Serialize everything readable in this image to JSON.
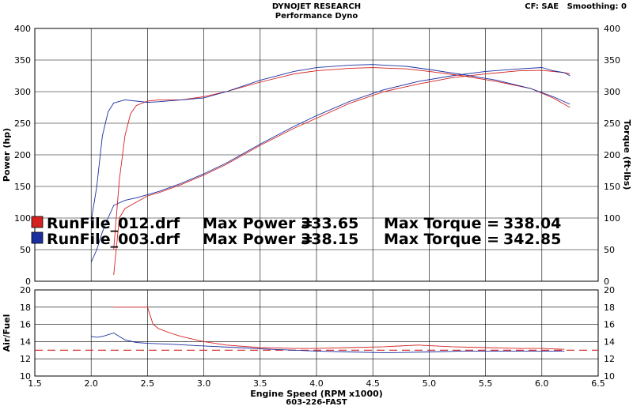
{
  "header": {
    "company": "DYNOJET RESEARCH",
    "subtitle": "Performance Dyno",
    "correction": "CF: SAE   Smoothing: 0",
    "footer": "603-226-FAST"
  },
  "colors": {
    "run012": "#d42020",
    "run003": "#1a2ea0",
    "reference_line": "#d42020"
  },
  "chart_data": [
    {
      "type": "line",
      "name": "power_torque",
      "x_range": [
        1.5,
        6.5
      ],
      "x_ticks": [
        "1.5",
        "2.0",
        "2.5",
        "3.0",
        "3.5",
        "4.0",
        "4.5",
        "5.0",
        "5.5",
        "6.0",
        "6.5"
      ],
      "ylabel": "Power (hp)",
      "ylabel_right": "Torque (ft-lbs)",
      "ylim": [
        0,
        400
      ],
      "y_ticks": [
        "0",
        "50",
        "100",
        "150",
        "200",
        "250",
        "300",
        "350",
        "400"
      ],
      "grid": true,
      "series": [
        {
          "name": "RunFile_012.drf",
          "kind": "power",
          "color": "#d42020",
          "x": [
            2.2,
            2.25,
            2.3,
            2.4,
            2.5,
            2.6,
            2.8,
            3.0,
            3.2,
            3.5,
            3.8,
            4.0,
            4.3,
            4.6,
            4.9,
            5.2,
            5.5,
            5.8,
            6.0,
            6.1,
            6.2,
            6.25
          ],
          "y": [
            10,
            100,
            115,
            125,
            135,
            140,
            153,
            168,
            185,
            215,
            242,
            258,
            282,
            300,
            312,
            322,
            328,
            333,
            333.65,
            332,
            330,
            328
          ]
        },
        {
          "name": "RunFile_003.drf",
          "kind": "power",
          "color": "#1a2ea0",
          "x": [
            2.0,
            2.05,
            2.1,
            2.15,
            2.2,
            2.3,
            2.4,
            2.5,
            2.6,
            2.8,
            3.0,
            3.2,
            3.5,
            3.8,
            4.0,
            4.3,
            4.6,
            4.9,
            5.2,
            5.5,
            5.8,
            6.0,
            6.1,
            6.2,
            6.25
          ],
          "y": [
            30,
            50,
            78,
            100,
            120,
            128,
            132,
            137,
            142,
            155,
            170,
            187,
            217,
            245,
            262,
            285,
            303,
            316,
            325,
            332,
            336,
            338.15,
            333,
            330,
            325
          ]
        },
        {
          "name": "RunFile_012.drf",
          "kind": "torque",
          "color": "#d42020",
          "x": [
            2.2,
            2.25,
            2.3,
            2.35,
            2.4,
            2.5,
            2.6,
            2.8,
            3.0,
            3.2,
            3.5,
            3.8,
            4.0,
            4.3,
            4.5,
            4.8,
            5.0,
            5.3,
            5.6,
            5.9,
            6.1,
            6.25
          ],
          "y": [
            50,
            160,
            230,
            265,
            278,
            285,
            287,
            287,
            292,
            300,
            315,
            328,
            333,
            337,
            338.04,
            336,
            332,
            325,
            316,
            305,
            290,
            275
          ]
        },
        {
          "name": "RunFile_003.drf",
          "kind": "torque",
          "color": "#1a2ea0",
          "x": [
            2.0,
            2.05,
            2.1,
            2.15,
            2.2,
            2.3,
            2.4,
            2.5,
            2.6,
            2.8,
            3.0,
            3.2,
            3.5,
            3.8,
            4.0,
            4.3,
            4.5,
            4.8,
            5.0,
            5.3,
            5.6,
            5.9,
            6.1,
            6.25
          ],
          "y": [
            95,
            150,
            230,
            268,
            282,
            287,
            285,
            283,
            284,
            287,
            290,
            300,
            318,
            332,
            338,
            342,
            342.85,
            340,
            335,
            327,
            318,
            305,
            292,
            280
          ]
        }
      ],
      "legend": [
        {
          "run": "RunFile_012.drf",
          "power_label": "Max Power =",
          "power": "333.65",
          "torque_label": "Max Torque =",
          "torque": "338.04",
          "color": "#d42020"
        },
        {
          "run": "RunFile_003.drf",
          "power_label": "Max Power =",
          "power": "338.15",
          "torque_label": "Max Torque =",
          "torque": "342.85",
          "color": "#1a2ea0"
        }
      ]
    },
    {
      "type": "line",
      "name": "air_fuel",
      "x_range": [
        1.5,
        6.5
      ],
      "ylabel": "Air/Fuel",
      "ylim": [
        10,
        20
      ],
      "y_ticks": [
        "10",
        "12",
        "14",
        "16",
        "18",
        "20"
      ],
      "xlabel": "Engine Speed (RPM x1000)",
      "reference": 13.0,
      "grid": true,
      "series": [
        {
          "name": "RunFile_012.drf",
          "color": "#d42020",
          "x": [
            2.2,
            2.3,
            2.4,
            2.5,
            2.55,
            2.6,
            2.7,
            2.8,
            3.0,
            3.2,
            3.5,
            3.8,
            4.0,
            4.3,
            4.6,
            4.9,
            5.2,
            5.5,
            5.8,
            6.0,
            6.2
          ],
          "y": [
            18.0,
            18.0,
            18.0,
            18.0,
            16.0,
            15.5,
            15.0,
            14.6,
            14.0,
            13.6,
            13.3,
            13.2,
            13.2,
            13.3,
            13.4,
            13.6,
            13.4,
            13.3,
            13.2,
            13.2,
            13.1
          ]
        },
        {
          "name": "RunFile_003.drf",
          "color": "#1a2ea0",
          "x": [
            2.0,
            2.05,
            2.1,
            2.2,
            2.3,
            2.4,
            2.5,
            2.7,
            3.0,
            3.3,
            3.6,
            4.0,
            4.3,
            4.6,
            5.0,
            5.3,
            5.6,
            5.9,
            6.1,
            6.2
          ],
          "y": [
            14.6,
            14.5,
            14.6,
            15.0,
            14.2,
            13.9,
            13.8,
            13.7,
            13.5,
            13.3,
            13.1,
            12.9,
            12.8,
            12.7,
            12.8,
            12.9,
            12.9,
            12.9,
            12.9,
            12.9
          ]
        }
      ]
    }
  ]
}
